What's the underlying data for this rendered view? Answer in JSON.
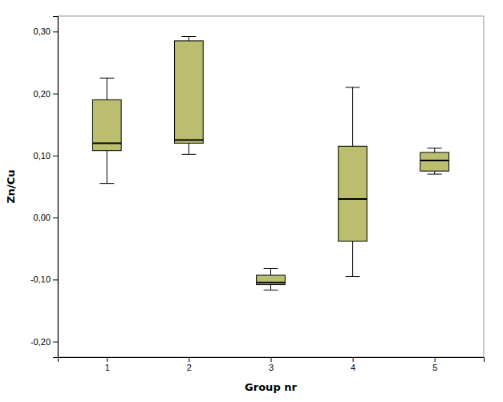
{
  "chart_data": {
    "type": "box",
    "xlabel": "Group nr",
    "ylabel": "Zn/Cu",
    "x": [
      1,
      2,
      3,
      4,
      5
    ],
    "xlim": [
      0.4,
      5.6
    ],
    "xticks": [
      1,
      2,
      3,
      4,
      5
    ],
    "ylim": [
      -0.225,
      0.325
    ],
    "yticks": [
      {
        "value": -0.2,
        "label": "-0,20"
      },
      {
        "value": -0.1,
        "label": "-0,10"
      },
      {
        "value": 0.0,
        "label": "0,00"
      },
      {
        "value": 0.1,
        "label": "0,10"
      },
      {
        "value": 0.2,
        "label": "0,20"
      },
      {
        "value": 0.3,
        "label": "0,30"
      }
    ],
    "color": "#bbbe6e",
    "grid": false,
    "boxes": [
      {
        "whislo": 0.055,
        "q1": 0.108,
        "med": 0.12,
        "q3": 0.19,
        "whishi": 0.225
      },
      {
        "whislo": 0.102,
        "q1": 0.12,
        "med": 0.125,
        "q3": 0.285,
        "whishi": 0.292
      },
      {
        "whislo": -0.117,
        "q1": -0.108,
        "med": -0.105,
        "q3": -0.093,
        "whishi": -0.082
      },
      {
        "whislo": -0.095,
        "q1": -0.038,
        "med": 0.03,
        "q3": 0.115,
        "whishi": 0.21
      },
      {
        "whislo": 0.07,
        "q1": 0.075,
        "med": 0.092,
        "q3": 0.105,
        "whishi": 0.112
      }
    ]
  }
}
